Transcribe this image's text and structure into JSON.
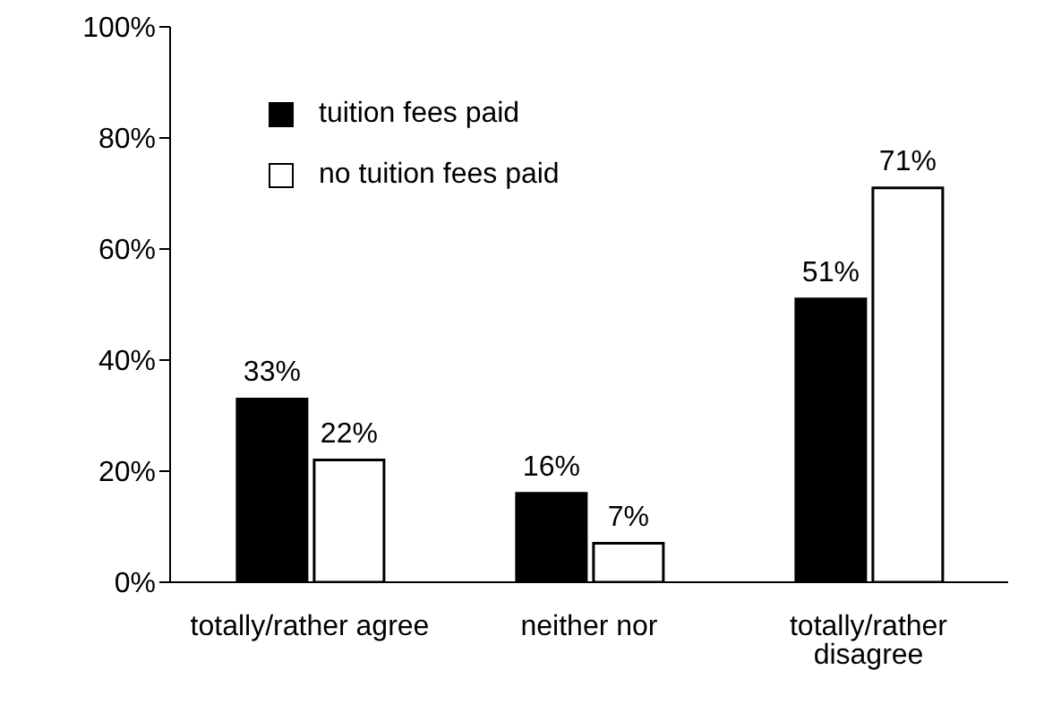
{
  "chart_data": {
    "type": "bar",
    "categories": [
      "totally/rather agree",
      "neither nor",
      "totally/rather disagree"
    ],
    "series": [
      {
        "name": "tuition fees paid",
        "color": "#000000",
        "values": [
          33,
          16,
          51
        ],
        "value_labels": [
          "33%",
          "16%",
          "51%"
        ]
      },
      {
        "name": "no tuition fees paid",
        "color": "#ffffff",
        "values": [
          22,
          7,
          71
        ],
        "value_labels": [
          "22%",
          "7%",
          "71%"
        ]
      }
    ],
    "ylim": [
      0,
      100
    ],
    "yticks": [
      {
        "value": 0,
        "label": "0%"
      },
      {
        "value": 20,
        "label": "20%"
      },
      {
        "value": 40,
        "label": "40%"
      },
      {
        "value": 60,
        "label": "60%"
      },
      {
        "value": 80,
        "label": "80%"
      },
      {
        "value": 100,
        "label": "100%"
      }
    ],
    "grid": false,
    "legend": "top left"
  }
}
